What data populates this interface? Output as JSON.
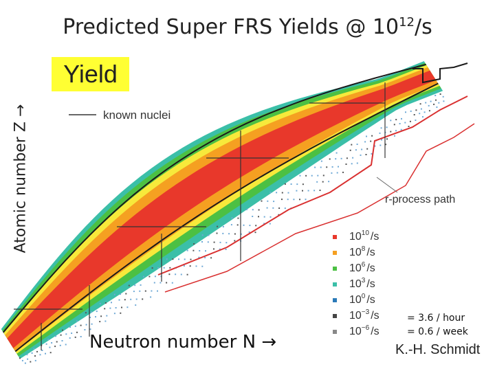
{
  "title": {
    "text": "Predicted Super FRS Yields @ 10",
    "exponent": "12",
    "suffix": "/s"
  },
  "ylabel": "Atomic number Z →",
  "xlabel": "Neutron number N →",
  "yield_label": "Yield",
  "known_nuclei_label": "known nuclei",
  "rprocess_label": "r-process path",
  "notes": [
    "= 3.6 / hour",
    "= 0.6 / week"
  ],
  "author": "K.-H. Schmidt",
  "colors": {
    "red": "#e8382b",
    "orange": "#f5a021",
    "yellow": "#f7e93b",
    "green": "#4cc043",
    "teal": "#3bbfa8",
    "blue": "#2a7ab8",
    "dark": "#1a1a1a",
    "rprocess": "#d93030"
  },
  "chart_data": {
    "type": "heatmap",
    "title": "Predicted Super FRS Yields @ 10^12/s",
    "xlabel": "Neutron number N",
    "ylabel": "Atomic number Z",
    "legend": [
      {
        "label": "10^10 /s",
        "base": "10",
        "exp": "10",
        "unit": "/s",
        "color": "#e8382b"
      },
      {
        "label": "10^8 /s",
        "base": "10",
        "exp": "8",
        "unit": "/s",
        "color": "#f5a021"
      },
      {
        "label": "10^6 /s",
        "base": "10",
        "exp": "6",
        "unit": "/s",
        "color": "#4cc043"
      },
      {
        "label": "10^3 /s",
        "base": "10",
        "exp": "3",
        "unit": "/s",
        "color": "#3bbfa8"
      },
      {
        "label": "10^0 /s",
        "base": "10",
        "exp": "0",
        "unit": "/s",
        "color": "#2a7ab8"
      },
      {
        "label": "10^-3 /s",
        "base": "10",
        "exp": "−3",
        "unit": "/s",
        "color": "#444444"
      },
      {
        "label": "10^-6 /s",
        "base": "10",
        "exp": "−6",
        "unit": "/s",
        "color": "#888888"
      }
    ],
    "annotations": [
      "known nuclei",
      "r-process path"
    ]
  }
}
